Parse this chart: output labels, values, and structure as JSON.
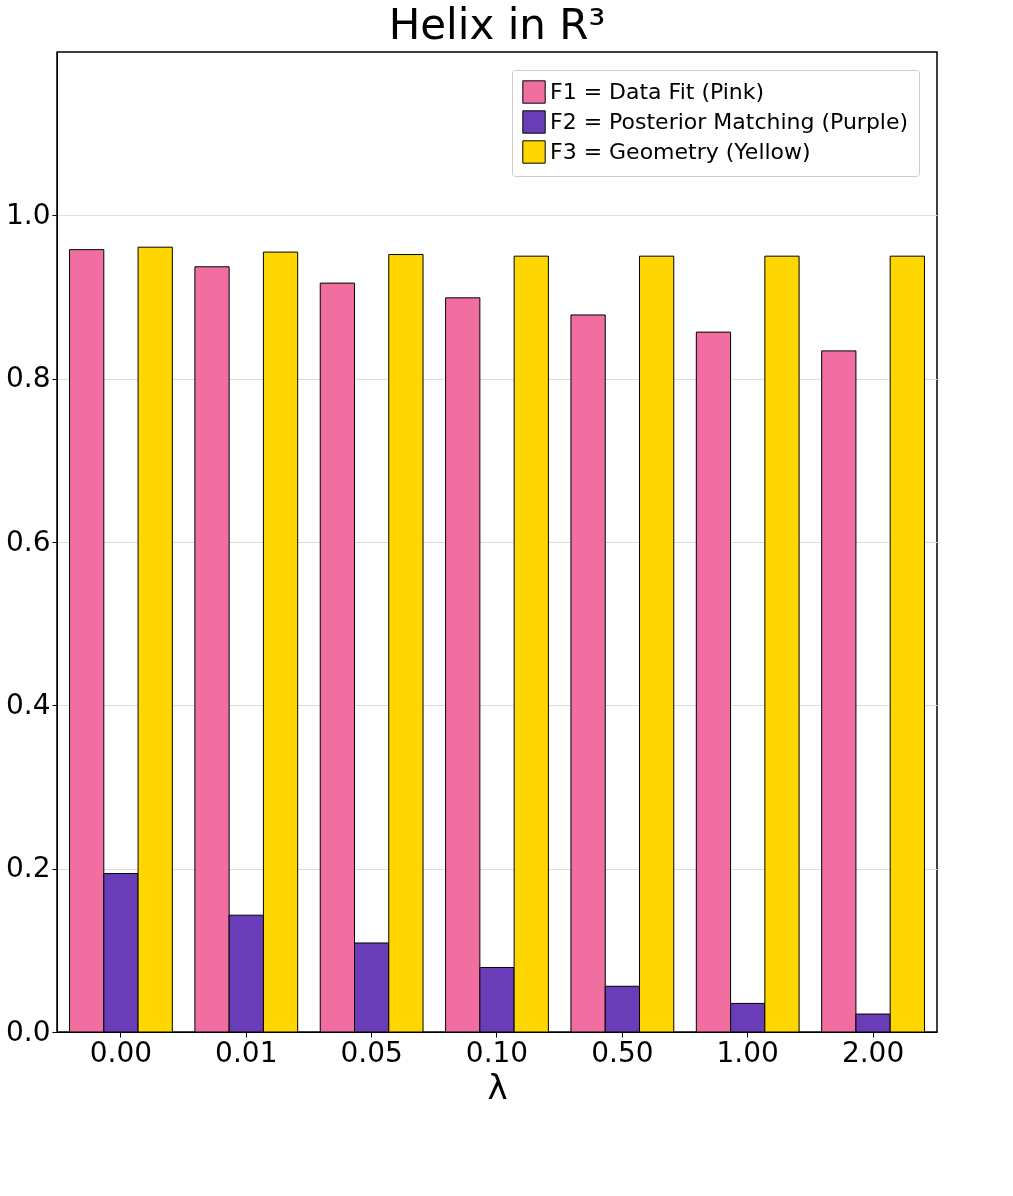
{
  "chart_data": {
    "type": "bar",
    "title": "Helix in R³",
    "xlabel": "λ",
    "categories": [
      "0.00",
      "0.01",
      "0.05",
      "0.10",
      "0.50",
      "1.00",
      "2.00"
    ],
    "series": [
      {
        "name": "F1 = Data Fit (Pink)",
        "color": "#f06fa0",
        "values": [
          0.958,
          0.937,
          0.917,
          0.899,
          0.878,
          0.857,
          0.834
        ]
      },
      {
        "name": "F2 = Posterior Matching (Purple)",
        "color": "#6a3db8",
        "values": [
          0.194,
          0.143,
          0.109,
          0.079,
          0.056,
          0.035,
          0.022
        ]
      },
      {
        "name": "F3 = Geometry (Yellow)",
        "color": "#ffd700",
        "values": [
          0.961,
          0.955,
          0.952,
          0.95,
          0.95,
          0.95,
          0.95
        ]
      }
    ],
    "ylim": [
      0,
      1.2
    ],
    "yticks": [
      {
        "value": 0,
        "label": "0.0"
      },
      {
        "value": 0.2,
        "label": "0.2"
      },
      {
        "value": 0.4,
        "label": "0.4"
      },
      {
        "value": 0.6,
        "label": "0.6"
      },
      {
        "value": 0.8,
        "label": "0.8"
      },
      {
        "value": 1.0,
        "label": "1.0"
      }
    ],
    "grid": "y",
    "legend": "top right"
  }
}
